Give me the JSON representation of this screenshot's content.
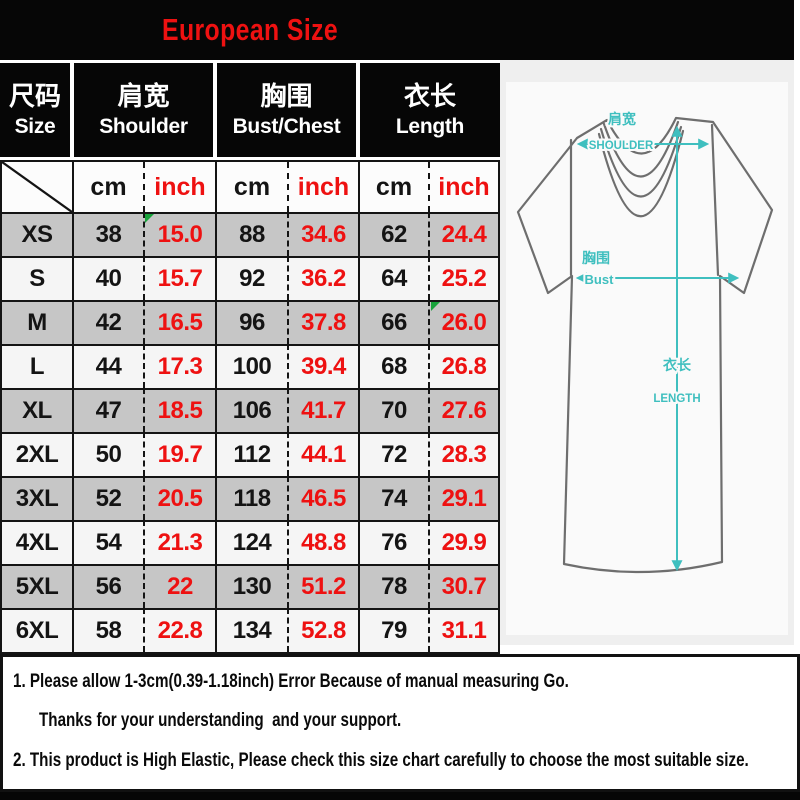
{
  "title": "European Size",
  "table": {
    "headers": [
      {
        "zh": "尺码",
        "en": "Size"
      },
      {
        "zh": "肩宽",
        "en": "Shoulder"
      },
      {
        "zh": "胸围",
        "en": "Bust/Chest"
      },
      {
        "zh": "衣长",
        "en": "Length"
      }
    ],
    "units": {
      "cm": "cm",
      "inch": "inch"
    },
    "rows": [
      {
        "size": "XS",
        "shoulder_cm": "38",
        "shoulder_in": "15.0",
        "bust_cm": "88",
        "bust_in": "34.6",
        "length_cm": "62",
        "length_in": "24.4"
      },
      {
        "size": "S",
        "shoulder_cm": "40",
        "shoulder_in": "15.7",
        "bust_cm": "92",
        "bust_in": "36.2",
        "length_cm": "64",
        "length_in": "25.2"
      },
      {
        "size": "M",
        "shoulder_cm": "42",
        "shoulder_in": "16.5",
        "bust_cm": "96",
        "bust_in": "37.8",
        "length_cm": "66",
        "length_in": "26.0"
      },
      {
        "size": "L",
        "shoulder_cm": "44",
        "shoulder_in": "17.3",
        "bust_cm": "100",
        "bust_in": "39.4",
        "length_cm": "68",
        "length_in": "26.8"
      },
      {
        "size": "XL",
        "shoulder_cm": "47",
        "shoulder_in": "18.5",
        "bust_cm": "106",
        "bust_in": "41.7",
        "length_cm": "70",
        "length_in": "27.6"
      },
      {
        "size": "2XL",
        "shoulder_cm": "50",
        "shoulder_in": "19.7",
        "bust_cm": "112",
        "bust_in": "44.1",
        "length_cm": "72",
        "length_in": "28.3"
      },
      {
        "size": "3XL",
        "shoulder_cm": "52",
        "shoulder_in": "20.5",
        "bust_cm": "118",
        "bust_in": "46.5",
        "length_cm": "74",
        "length_in": "29.1"
      },
      {
        "size": "4XL",
        "shoulder_cm": "54",
        "shoulder_in": "21.3",
        "bust_cm": "124",
        "bust_in": "48.8",
        "length_cm": "76",
        "length_in": "29.9"
      },
      {
        "size": "5XL",
        "shoulder_cm": "56",
        "shoulder_in": "22",
        "bust_cm": "130",
        "bust_in": "51.2",
        "length_cm": "78",
        "length_in": "30.7"
      },
      {
        "size": "6XL",
        "shoulder_cm": "58",
        "shoulder_in": "22.8",
        "bust_cm": "134",
        "bust_in": "52.8",
        "length_cm": "79",
        "length_in": "31.1"
      }
    ]
  },
  "diagram": {
    "shoulder_zh": "肩宽",
    "shoulder_en": "SHOULDER",
    "bust_zh": "胸围",
    "bust_en": "Bust",
    "length_zh": "衣长",
    "length_en": "LENGTH"
  },
  "notes": {
    "line1": "1. Please allow 1-3cm(0.39-1.18inch) Error Because of manual measuring Go.",
    "line2": "Thanks for your understanding  and your support.",
    "line3": "2. This product is High Elastic, Please check this size chart carefully to choose the most suitable size."
  },
  "colors": {
    "accent_red": "#ee1111",
    "measure_cyan": "#3fbfbf",
    "row_gray": "#c6c6c6",
    "row_light": "#f5f5f5",
    "header_black": "#060606"
  }
}
